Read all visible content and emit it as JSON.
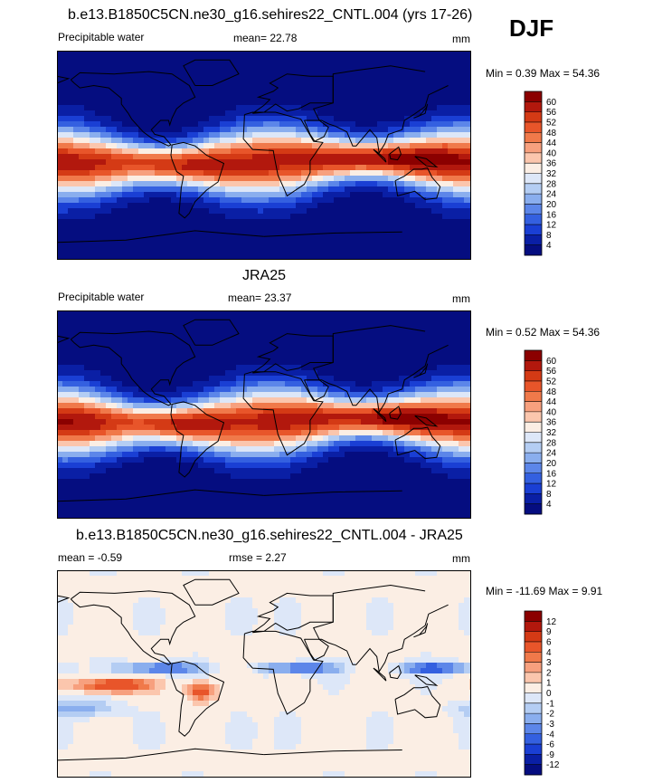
{
  "season": "DJF",
  "panels": [
    {
      "title": "b.e13.B1850C5CN.ne30_g16.sehires22_CNTL.004 (yrs 17-26)",
      "variable": "Precipitable water",
      "stat1": "mean=  22.78",
      "stat2": "",
      "units": "mm",
      "minmax": "Min =   0.39 Max =  54.36"
    },
    {
      "title": "JRA25",
      "variable": "Precipitable water",
      "stat1": "mean=  23.37",
      "stat2": "",
      "units": "mm",
      "minmax": "Min =   0.52 Max =  54.36"
    },
    {
      "title": "b.e13.B1850C5CN.ne30_g16.sehires22_CNTL.004 - JRA25",
      "variable": "",
      "stat1": "mean =  -0.59",
      "stat2": "rmse =   2.27",
      "units": "mm",
      "minmax": "Min = -11.69 Max =   9.91"
    }
  ],
  "colorbars": {
    "absolute": {
      "levels": [
        "60",
        "56",
        "52",
        "48",
        "44",
        "40",
        "36",
        "32",
        "28",
        "24",
        "20",
        "16",
        "12",
        "8",
        "4"
      ],
      "colors": [
        "#8b0000",
        "#b2180d",
        "#d43a15",
        "#e8552a",
        "#f0794a",
        "#f7a07e",
        "#fbc6ad",
        "#fbeee4",
        "#dde7f8",
        "#b4cdf3",
        "#8aaeee",
        "#5c86e9",
        "#3460e0",
        "#1a3fd4",
        "#0a1fa5",
        "#050d80"
      ]
    },
    "difference": {
      "levels": [
        "12",
        "9",
        "6",
        "4",
        "3",
        "2",
        "1",
        "0",
        "-1",
        "-2",
        "-3",
        "-4",
        "-6",
        "-9",
        "-12"
      ],
      "colors": [
        "#8b0000",
        "#b2180d",
        "#d43a15",
        "#e8552a",
        "#f0794a",
        "#f7a07e",
        "#fbc6ad",
        "#fbeee4",
        "#dde7f8",
        "#b4cdf3",
        "#8aaeee",
        "#5c86e9",
        "#3460e0",
        "#1a3fd4",
        "#0a1fa5",
        "#050d80"
      ]
    }
  },
  "chart_data": [
    {
      "type": "heatmap",
      "title": "b.e13.B1850C5CN.ne30_g16.sehires22_CNTL.004 (yrs 17-26)",
      "variable": "Precipitable water",
      "units": "mm",
      "mean": 22.78,
      "min": 0.39,
      "max": 54.36,
      "contour_levels": [
        4,
        8,
        12,
        16,
        20,
        24,
        28,
        32,
        36,
        40,
        44,
        48,
        52,
        56,
        60
      ]
    },
    {
      "type": "heatmap",
      "title": "JRA25",
      "variable": "Precipitable water",
      "units": "mm",
      "mean": 23.37,
      "min": 0.52,
      "max": 54.36,
      "contour_levels": [
        4,
        8,
        12,
        16,
        20,
        24,
        28,
        32,
        36,
        40,
        44,
        48,
        52,
        56,
        60
      ]
    },
    {
      "type": "heatmap",
      "title": "b.e13.B1850C5CN.ne30_g16.sehires22_CNTL.004 - JRA25",
      "units": "mm",
      "mean": -0.59,
      "rmse": 2.27,
      "min": -11.69,
      "max": 9.91,
      "contour_levels": [
        -12,
        -9,
        -6,
        -4,
        -3,
        -2,
        -1,
        0,
        1,
        2,
        3,
        4,
        6,
        9,
        12
      ]
    }
  ]
}
